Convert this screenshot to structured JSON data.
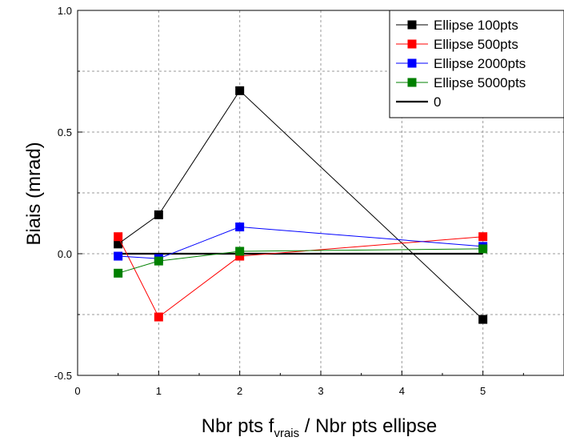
{
  "chart_data": {
    "type": "line",
    "title": "",
    "xlabel": {
      "main": "Nbr pts f",
      "sub": "vrais",
      "rest": " / Nbr pts ellipse"
    },
    "ylabel": "Biais (mrad)",
    "xlim": [
      0,
      6
    ],
    "ylim": [
      -0.5,
      1.0
    ],
    "x_ticks": [
      0,
      1,
      2,
      3,
      4,
      5
    ],
    "x_tick_labels": [
      "0",
      "1",
      "2",
      "3",
      "4",
      "5"
    ],
    "y_ticks": [
      -0.5,
      0.0,
      0.5,
      1.0
    ],
    "y_tick_labels": [
      "-0.5",
      "0.0",
      "0.5",
      "1.0"
    ],
    "grid": true,
    "legend_position": "top-right",
    "x": [
      0.5,
      1,
      2,
      5
    ],
    "series": [
      {
        "name": "Ellipse 100pts",
        "color": "#000000",
        "marker": "square",
        "values": [
          0.04,
          0.16,
          0.67,
          -0.27
        ]
      },
      {
        "name": "Ellipse 500pts",
        "color": "#ff0000",
        "marker": "square",
        "values": [
          0.07,
          -0.26,
          -0.01,
          0.07
        ]
      },
      {
        "name": "Ellipse 2000pts",
        "color": "#0000ff",
        "marker": "square",
        "values": [
          -0.01,
          -0.02,
          0.11,
          0.03
        ]
      },
      {
        "name": "Ellipse 5000pts",
        "color": "#008000",
        "marker": "square",
        "values": [
          -0.08,
          -0.03,
          0.01,
          0.02
        ]
      }
    ],
    "reference_line": {
      "name": "0",
      "color": "#000000",
      "x": [
        0.5,
        5
      ],
      "value": 0
    }
  }
}
